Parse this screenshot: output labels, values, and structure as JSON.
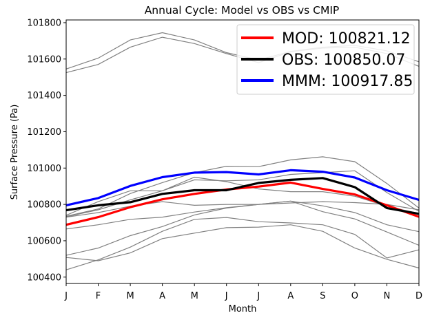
{
  "chart_data": {
    "type": "line",
    "title": "Annual Cycle: Model vs OBS vs CMIP",
    "xlabel": "Month",
    "ylabel": "Surface Pressure (Pa)",
    "categories": [
      "J",
      "F",
      "M",
      "A",
      "M",
      "J",
      "J",
      "A",
      "S",
      "O",
      "N",
      "D"
    ],
    "ylim": [
      100365,
      101815
    ],
    "yticks": [
      100400,
      100600,
      100800,
      101000,
      101200,
      101400,
      101600,
      101800
    ],
    "grid": false,
    "legend_position": "top-right",
    "highlight_series": [
      {
        "label": "MOD: 100821.12",
        "color": "#ff0000",
        "values": [
          100688,
          100730,
          100785,
          100828,
          100858,
          100882,
          100898,
          100920,
          100885,
          100855,
          100795,
          100732
        ]
      },
      {
        "label": "OBS: 100850.07",
        "color": "#000000",
        "values": [
          100768,
          100795,
          100812,
          100858,
          100878,
          100878,
          100918,
          100935,
          100945,
          100895,
          100780,
          100748
        ]
      },
      {
        "label": "MMM: 100917.85",
        "color": "#0000ff",
        "values": [
          100795,
          100835,
          100902,
          100950,
          100975,
          100978,
          100965,
          100988,
          100980,
          100948,
          100878,
          100825
        ]
      }
    ],
    "cmip_color": "#808080",
    "cmip_series": [
      [
        101545,
        101605,
        101705,
        101745,
        101705,
        101635,
        101595,
        101642,
        101665,
        101675,
        101645,
        101585
      ],
      [
        101525,
        101570,
        101665,
        101720,
        101685,
        101630,
        101580,
        101640,
        101660,
        101665,
        101630,
        101560
      ],
      [
        100735,
        100775,
        100860,
        100920,
        100975,
        101010,
        101008,
        101045,
        101062,
        101035,
        100915,
        100780
      ],
      [
        100732,
        100770,
        100825,
        100875,
        100950,
        100925,
        100885,
        100870,
        100870,
        100845,
        100790,
        100750
      ],
      [
        100740,
        100815,
        100875,
        100875,
        100935,
        100930,
        100935,
        100965,
        100975,
        100985,
        100865,
        100762
      ],
      [
        100730,
        100755,
        100790,
        100815,
        100795,
        100800,
        100800,
        100808,
        100815,
        100810,
        100800,
        100770
      ],
      [
        100665,
        100688,
        100718,
        100730,
        100758,
        100782,
        100800,
        100818,
        100760,
        100720,
        100648,
        100575
      ],
      [
        100520,
        100560,
        100628,
        100678,
        100742,
        100780,
        100800,
        100818,
        100792,
        100755,
        100688,
        100650
      ],
      [
        100508,
        100490,
        100533,
        100612,
        100642,
        100672,
        100675,
        100688,
        100652,
        100560,
        100498,
        100450
      ],
      [
        100440,
        100495,
        100565,
        100652,
        100718,
        100728,
        100705,
        100698,
        100688,
        100635,
        100505,
        100550
      ]
    ]
  }
}
